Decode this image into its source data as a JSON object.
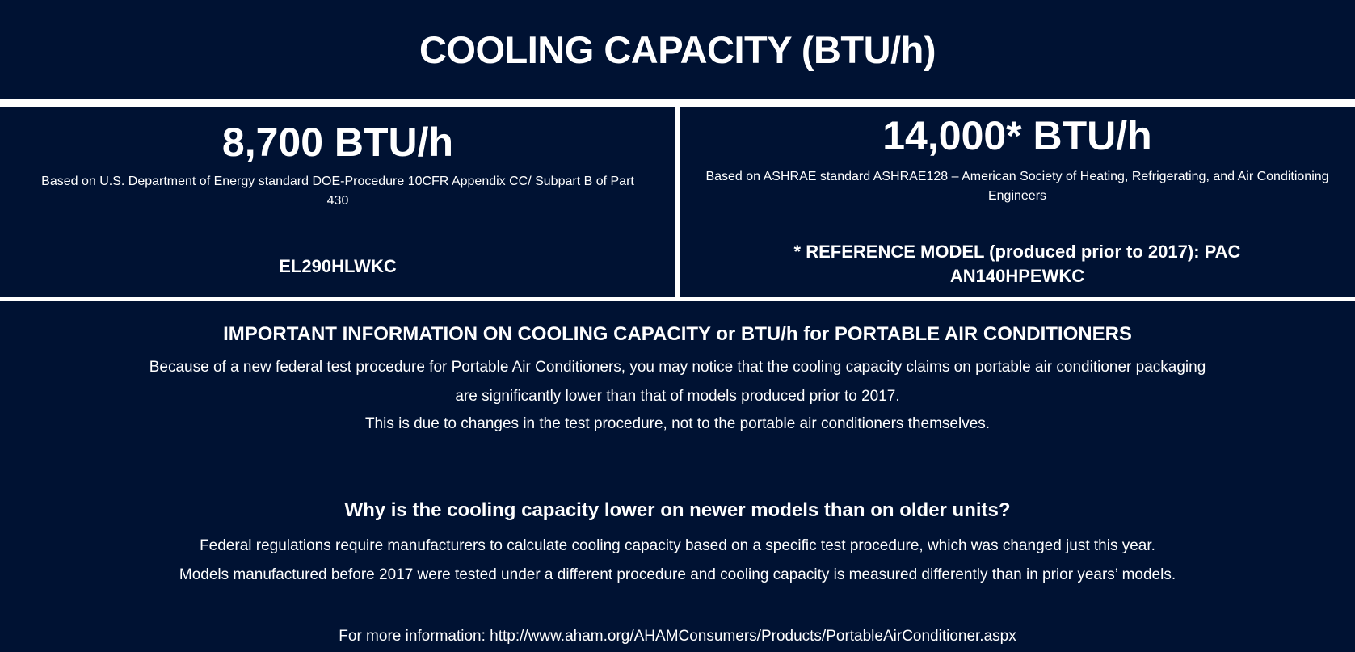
{
  "title": "COOLING CAPACITY (BTU/h)",
  "left": {
    "value": "8,700 BTU/h",
    "basis": "Based on U.S. Department of Energy standard DOE-Procedure 10CFR Appendix CC/ Subpart B of Part 430",
    "model": "EL290HLWKC"
  },
  "right": {
    "value": "14,000* BTU/h",
    "basis": "Based on ASHRAE standard ASHRAE128 – American Society of Heating, Refrigerating, and Air Conditioning Engineers",
    "model": "* REFERENCE MODEL (produced prior to 2017): PAC AN140HPEWKC"
  },
  "info": {
    "heading": "IMPORTANT INFORMATION ON COOLING CAPACITY or BTU/h for PORTABLE AIR CONDITIONERS",
    "lines": [
      "Because of a new federal test procedure for Portable Air Conditioners, you may notice that the cooling capacity claims on portable air conditioner packaging",
      "are significantly lower than that of models produced prior to 2017.",
      "This is due to changes in the test procedure, not to the portable air conditioners themselves."
    ]
  },
  "why": {
    "heading": "Why is the cooling capacity lower on newer models than on older units?",
    "lines": [
      "Federal regulations require manufacturers to calculate cooling capacity based on a specific test procedure, which was changed just this year.",
      "Models manufactured before 2017 were tested under a different procedure and cooling capacity is measured differently than in prior years’ models."
    ]
  },
  "more_info": "For more information: http://www.aham.org/AHAMConsumers/Products/PortableAirConditioner.aspx",
  "colors": {
    "background": "#001233",
    "text": "#ffffff"
  }
}
